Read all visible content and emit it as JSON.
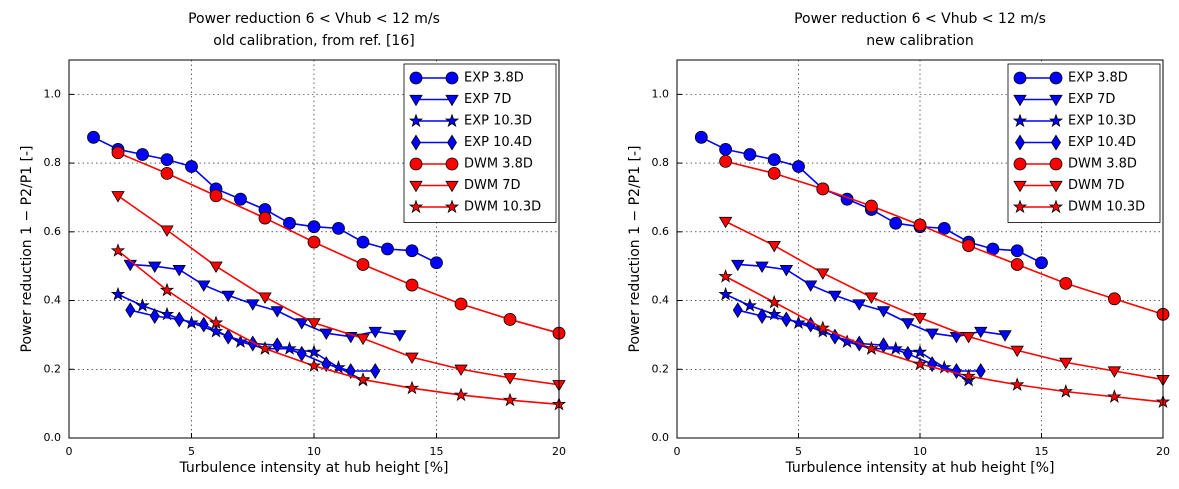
{
  "chart_data": [
    {
      "type": "line",
      "title": "Power reduction 6 < Vhub < 12 m/s",
      "subtitle": "old calibration, from ref. [16]",
      "xlabel": "Turbulence intensity at hub height [%]",
      "ylabel": "Power reduction 1 − P2/P1 [-]",
      "xlim": [
        0,
        20
      ],
      "ylim": [
        0,
        1.1
      ],
      "xticks": [
        0,
        5,
        10,
        15,
        20
      ],
      "yticks": [
        {
          "value": 0,
          "label": "0.0"
        },
        0.2,
        0.4,
        0.6,
        0.8,
        {
          "value": 1,
          "label": "1.0"
        }
      ],
      "grid": true,
      "legend": "upper right",
      "series": [
        {
          "name": "EXP 3.8D",
          "color": "#0000ff",
          "marker": "circle",
          "x": [
            1,
            2,
            3,
            4,
            5,
            6,
            7,
            8,
            9,
            10,
            11,
            12,
            13,
            14,
            15
          ],
          "values": [
            0.875,
            0.84,
            0.825,
            0.81,
            0.79,
            0.725,
            0.695,
            0.665,
            0.625,
            0.615,
            0.61,
            0.57,
            0.55,
            0.545,
            0.51
          ]
        },
        {
          "name": "EXP 7D",
          "color": "#0000ff",
          "marker": "triangle",
          "x": [
            2.5,
            3.5,
            4.5,
            5.5,
            6.5,
            7.5,
            8.5,
            9.5,
            10.5,
            11.5,
            12.5,
            13.5
          ],
          "values": [
            0.505,
            0.5,
            0.49,
            0.445,
            0.415,
            0.39,
            0.37,
            0.335,
            0.305,
            0.295,
            0.31,
            0.3
          ]
        },
        {
          "name": "EXP 10.3D",
          "color": "#0000ff",
          "marker": "star",
          "x": [
            2,
            3,
            4,
            5,
            6,
            7,
            8,
            9,
            10,
            11,
            12
          ],
          "values": [
            0.418,
            0.385,
            0.36,
            0.335,
            0.31,
            0.28,
            0.26,
            0.26,
            0.25,
            0.205,
            0.168
          ]
        },
        {
          "name": "EXP 10.4D",
          "color": "#0000ff",
          "marker": "diamond",
          "x": [
            2.5,
            3.5,
            4.5,
            5.5,
            6.5,
            7.5,
            8.5,
            9.5,
            10.5,
            11.5,
            12.5
          ],
          "values": [
            0.372,
            0.355,
            0.345,
            0.33,
            0.295,
            0.275,
            0.27,
            0.245,
            0.215,
            0.195,
            0.195
          ]
        },
        {
          "name": "DWM 3.8D",
          "color": "#ff0000",
          "marker": "circle",
          "x": [
            2,
            4,
            6,
            8,
            10,
            12,
            14,
            16,
            18,
            20
          ],
          "values": [
            0.83,
            0.77,
            0.705,
            0.64,
            0.57,
            0.505,
            0.445,
            0.39,
            0.345,
            0.305
          ]
        },
        {
          "name": "DWM 7D",
          "color": "#ff0000",
          "marker": "triangle",
          "x": [
            2,
            4,
            6,
            8,
            10,
            12,
            14,
            16,
            18,
            20
          ],
          "values": [
            0.705,
            0.605,
            0.5,
            0.41,
            0.335,
            0.29,
            0.235,
            0.2,
            0.175,
            0.155
          ]
        },
        {
          "name": "DWM 10.3D",
          "color": "#ff0000",
          "marker": "star",
          "x": [
            2,
            4,
            6,
            8,
            10,
            12,
            14,
            16,
            18,
            20
          ],
          "values": [
            0.545,
            0.43,
            0.335,
            0.26,
            0.21,
            0.17,
            0.145,
            0.125,
            0.11,
            0.098
          ]
        }
      ]
    },
    {
      "type": "line",
      "title": "Power reduction 6 < Vhub < 12 m/s",
      "subtitle": "new calibration",
      "xlabel": "Turbulence intensity at hub height [%]",
      "ylabel": "Power reduction 1 − P2/P1 [-]",
      "xlim": [
        0,
        20
      ],
      "ylim": [
        0,
        1.1
      ],
      "xticks": [
        0,
        5,
        10,
        15,
        20
      ],
      "yticks": [
        {
          "value": 0,
          "label": "0.0"
        },
        0.2,
        0.4,
        0.6,
        0.8,
        {
          "value": 1,
          "label": "1.0"
        }
      ],
      "grid": true,
      "legend": "upper right",
      "series": [
        {
          "name": "EXP 3.8D",
          "color": "#0000ff",
          "marker": "circle",
          "x": [
            1,
            2,
            3,
            4,
            5,
            6,
            7,
            8,
            9,
            10,
            11,
            12,
            13,
            14,
            15
          ],
          "values": [
            0.875,
            0.84,
            0.825,
            0.81,
            0.79,
            0.725,
            0.695,
            0.665,
            0.625,
            0.615,
            0.61,
            0.57,
            0.55,
            0.545,
            0.51
          ]
        },
        {
          "name": "EXP 7D",
          "color": "#0000ff",
          "marker": "triangle",
          "x": [
            2.5,
            3.5,
            4.5,
            5.5,
            6.5,
            7.5,
            8.5,
            9.5,
            10.5,
            11.5,
            12.5,
            13.5
          ],
          "values": [
            0.505,
            0.5,
            0.49,
            0.445,
            0.415,
            0.39,
            0.37,
            0.335,
            0.305,
            0.295,
            0.31,
            0.3
          ]
        },
        {
          "name": "EXP 10.3D",
          "color": "#0000ff",
          "marker": "star",
          "x": [
            2,
            3,
            4,
            5,
            6,
            7,
            8,
            9,
            10,
            11,
            12
          ],
          "values": [
            0.418,
            0.385,
            0.36,
            0.335,
            0.31,
            0.28,
            0.26,
            0.26,
            0.25,
            0.205,
            0.168
          ]
        },
        {
          "name": "EXP 10.4D",
          "color": "#0000ff",
          "marker": "diamond",
          "x": [
            2.5,
            3.5,
            4.5,
            5.5,
            6.5,
            7.5,
            8.5,
            9.5,
            10.5,
            11.5,
            12.5
          ],
          "values": [
            0.372,
            0.355,
            0.345,
            0.33,
            0.295,
            0.275,
            0.27,
            0.245,
            0.215,
            0.195,
            0.195
          ]
        },
        {
          "name": "DWM 3.8D",
          "color": "#ff0000",
          "marker": "circle",
          "x": [
            2,
            4,
            6,
            8,
            10,
            12,
            14,
            16,
            18,
            20
          ],
          "values": [
            0.805,
            0.77,
            0.725,
            0.675,
            0.62,
            0.56,
            0.505,
            0.45,
            0.405,
            0.36
          ]
        },
        {
          "name": "DWM 7D",
          "color": "#ff0000",
          "marker": "triangle",
          "x": [
            2,
            4,
            6,
            8,
            10,
            12,
            14,
            16,
            18,
            20
          ],
          "values": [
            0.63,
            0.56,
            0.48,
            0.41,
            0.35,
            0.295,
            0.255,
            0.22,
            0.195,
            0.17
          ]
        },
        {
          "name": "DWM 10.3D",
          "color": "#ff0000",
          "marker": "star",
          "x": [
            2,
            4,
            6,
            8,
            10,
            12,
            14,
            16,
            18,
            20
          ],
          "values": [
            0.47,
            0.395,
            0.32,
            0.26,
            0.215,
            0.18,
            0.155,
            0.135,
            0.12,
            0.105
          ]
        }
      ]
    }
  ]
}
